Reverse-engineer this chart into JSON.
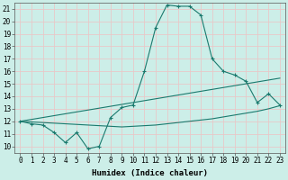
{
  "xlabel": "Humidex (Indice chaleur)",
  "bg_color": "#cceee8",
  "grid_color": "#e8c8c8",
  "line_color": "#1a7a6e",
  "xlim": [
    -0.5,
    23.5
  ],
  "ylim": [
    9.5,
    21.5
  ],
  "xticks": [
    0,
    1,
    2,
    3,
    4,
    5,
    6,
    7,
    8,
    9,
    10,
    11,
    12,
    13,
    14,
    15,
    16,
    17,
    18,
    19,
    20,
    21,
    22,
    23
  ],
  "yticks": [
    10,
    11,
    12,
    13,
    14,
    15,
    16,
    17,
    18,
    19,
    20,
    21
  ],
  "humidex_curve": [
    12.0,
    11.8,
    11.7,
    11.1,
    10.3,
    11.1,
    9.8,
    10.0,
    12.3,
    13.1,
    13.3,
    16.0,
    19.5,
    21.3,
    21.2,
    21.2,
    20.5,
    17.0,
    16.0,
    15.7,
    15.2,
    13.5,
    14.2,
    13.3
  ],
  "line_upper": [
    12.0,
    12.15,
    12.3,
    12.45,
    12.6,
    12.75,
    12.9,
    13.05,
    13.2,
    13.35,
    13.5,
    13.65,
    13.8,
    13.95,
    14.1,
    14.25,
    14.4,
    14.55,
    14.7,
    14.85,
    15.0,
    15.15,
    15.3,
    15.45
  ],
  "line_lower": [
    12.0,
    11.95,
    11.9,
    11.85,
    11.8,
    11.75,
    11.7,
    11.65,
    11.6,
    11.55,
    11.6,
    11.65,
    11.7,
    11.8,
    11.9,
    12.0,
    12.1,
    12.2,
    12.35,
    12.5,
    12.65,
    12.8,
    13.0,
    13.25
  ],
  "tick_fontsize": 5.5,
  "label_fontsize": 6.5
}
